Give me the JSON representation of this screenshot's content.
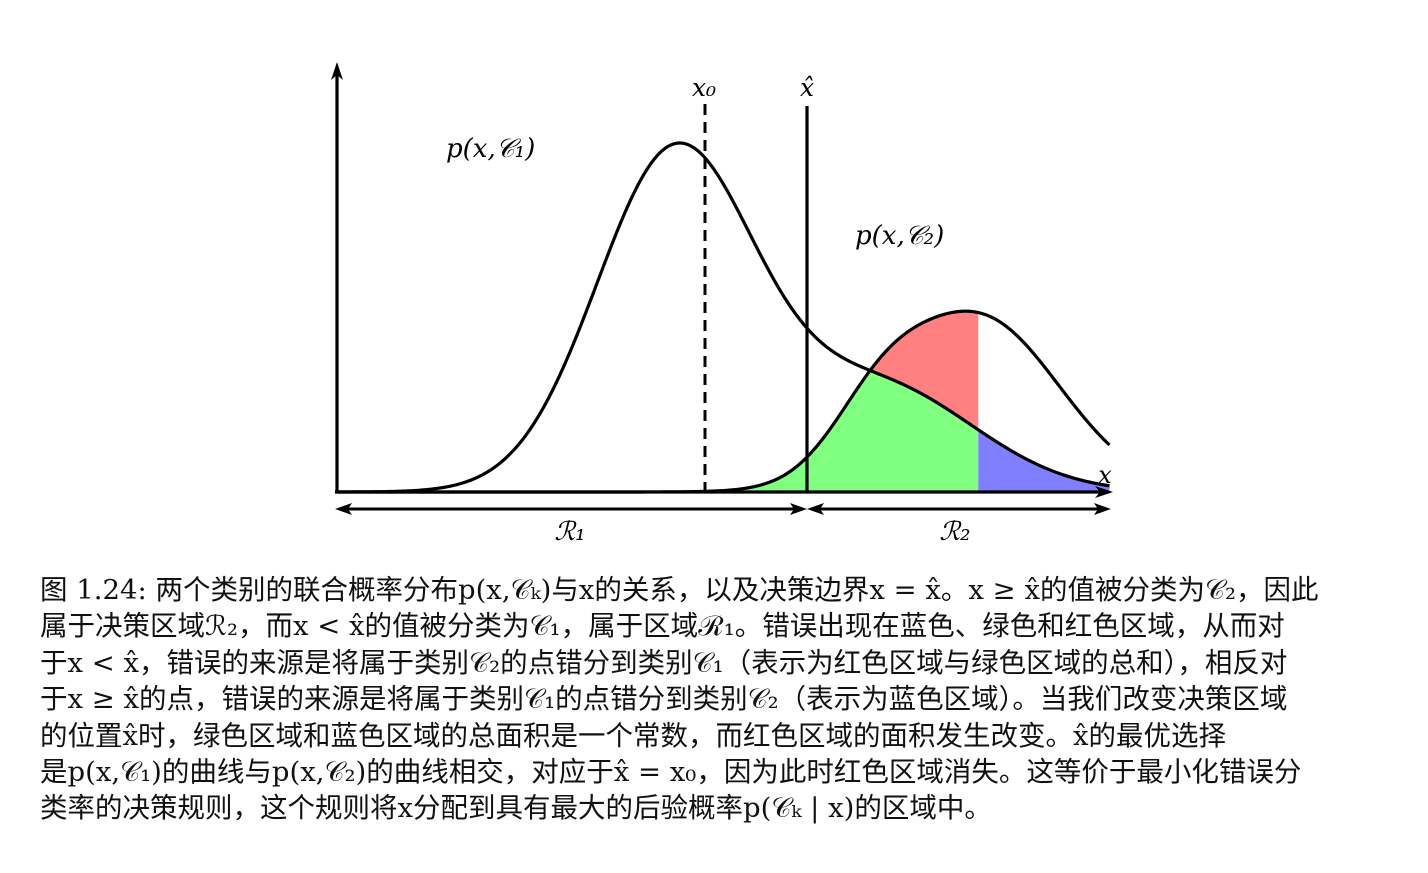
{
  "figure": {
    "labels": {
      "x0": "x₀",
      "xhat": "x̂",
      "x_axis": "x",
      "p1": "p(x,𝒞₁)",
      "p2": "p(x,𝒞₂)",
      "r1": "ℛ₁",
      "r2": "ℛ₂"
    },
    "colors": {
      "red_region": "#ff8080",
      "green_region": "#80ff80",
      "blue_region": "#8080ff",
      "curve": "#000000"
    },
    "curves": {
      "c1_component": {
        "mu": 4.5,
        "sigma": 1.05,
        "amp": 3.0
      },
      "c2_components": [
        {
          "mu": 8.55,
          "sigma": 1.08,
          "amp": 1.56
        },
        {
          "mu": 7.2,
          "sigma": 0.62,
          "amp": 0.45
        }
      ],
      "green_component": {
        "mu": 7.2,
        "sigma": 1.3,
        "amp": 0.95
      },
      "xhat": 8.55,
      "x0": 6.4
    }
  },
  "caption": {
    "lines": [
      "图 1.24: 两个类别的联合概率分布p(x,𝒞ₖ)与x的关系，以及决策边界x = x̂。x ≥ x̂的值被分类为𝒞₂，因此",
      "属于决策区域ℛ₂，而x < x̂的值被分类为𝒞₁，属于区域ℛ₁。错误出现在蓝色、绿色和红色区域，从而对",
      "于x < x̂，错误的来源是将属于类别𝒞₂的点错分到类别𝒞₁（表示为红色区域与绿色区域的总和），相反对",
      "于x ≥ x̂的点，错误的来源是将属于类别𝒞₁的点错分到类别𝒞₂（表示为蓝色区域）。当我们改变决策区域",
      "的位置x̂时，绿色区域和蓝色区域的总面积是一个常数，而红色区域的面积发生改变。x̂的最优选择",
      "是p(x,𝒞₁)的曲线与p(x,𝒞₂)的曲线相交，对应于x̂ = x₀，因为此时红色区域消失。这等价于最小化错误分",
      "类率的决策规则，这个规则将x分配到具有最大的后验概率p(𝒞ₖ | x)的区域中。"
    ]
  }
}
